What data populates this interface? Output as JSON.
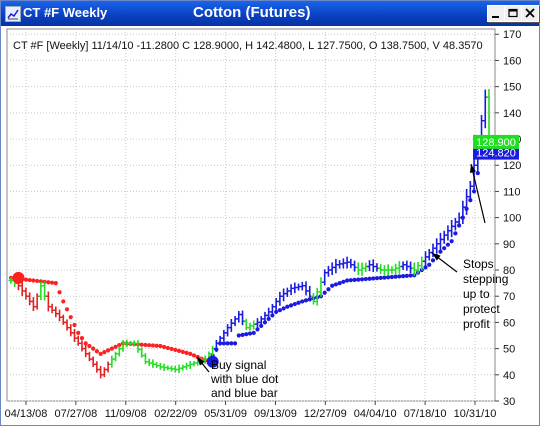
{
  "window": {
    "title": "CT #F Weekly",
    "chart_title": "Cotton (Futures)",
    "controls": [
      "minimize-icon",
      "restore-icon",
      "close-icon"
    ]
  },
  "colors": {
    "titlebar": "#0a3fc0",
    "up_bar": "#22dd22",
    "down_bar": "#e02020",
    "signal_bar": "#1a1ae0",
    "stop_dot_red": "#ff2020",
    "stop_dot_blue": "#1a1ae0",
    "grid": "#c8c8c8",
    "last_price_box": "#1a1ae0",
    "ref_price_box": "#22dd22"
  },
  "chart_data": {
    "type": "ohlc",
    "info_line": "CT #F [Weekly] 11/14/10  -11.2800 C 128.9000, H 142.4800, L 127.7500, O 138.7500, V 48.3570",
    "y_axis": {
      "ticks": [
        30,
        40,
        50,
        60,
        70,
        80,
        90,
        100,
        110,
        120,
        130,
        140,
        150,
        160,
        170
      ],
      "ylim": [
        30,
        172
      ],
      "side": "right"
    },
    "x_axis": {
      "tick_labels": [
        "04/13/08",
        "07/27/08",
        "11/09/08",
        "02/22/09",
        "05/31/09",
        "09/13/09",
        "12/27/09",
        "04/04/10",
        "07/18/10",
        "10/31/10"
      ]
    },
    "grid": true,
    "price_labels": [
      {
        "value": "124.820",
        "color": "#1a1ae0"
      },
      {
        "value": "128.900",
        "color": "#22dd22"
      }
    ],
    "signals": [
      {
        "type": "sell",
        "week": 2,
        "price": 77
      },
      {
        "type": "buy",
        "week": 54,
        "price": 45
      }
    ],
    "annotations": [
      {
        "text": "Buy signal with blue dot and blue bar",
        "lines": [
          "Buy signal",
          "with blue dot",
          "and blue bar"
        ]
      },
      {
        "text": "Stops stepping up to protect profit",
        "lines": [
          "Stops",
          "stepping",
          "up to",
          "protect",
          "profit"
        ]
      }
    ],
    "series_anchors": [
      [
        0,
        76,
        "green"
      ],
      [
        2,
        74,
        "red"
      ],
      [
        4,
        70,
        "red"
      ],
      [
        6,
        66,
        "red"
      ],
      [
        8,
        74,
        "green"
      ],
      [
        10,
        66,
        "red"
      ],
      [
        13,
        62,
        "red"
      ],
      [
        16,
        56,
        "red"
      ],
      [
        19,
        50,
        "red"
      ],
      [
        22,
        44,
        "red"
      ],
      [
        24,
        40,
        "red"
      ],
      [
        27,
        46,
        "green"
      ],
      [
        30,
        52,
        "green"
      ],
      [
        33,
        52,
        "green"
      ],
      [
        36,
        45,
        "green"
      ],
      [
        40,
        43,
        "green"
      ],
      [
        44,
        42,
        "green"
      ],
      [
        48,
        44,
        "green"
      ],
      [
        52,
        46,
        "green"
      ],
      [
        55,
        52,
        "blue"
      ],
      [
        58,
        58,
        "blue"
      ],
      [
        61,
        63,
        "blue"
      ],
      [
        63,
        58,
        "green"
      ],
      [
        66,
        60,
        "blue"
      ],
      [
        69,
        64,
        "blue"
      ],
      [
        72,
        70,
        "blue"
      ],
      [
        75,
        73,
        "blue"
      ],
      [
        78,
        74,
        "blue"
      ],
      [
        81,
        68,
        "green"
      ],
      [
        84,
        79,
        "blue"
      ],
      [
        87,
        82,
        "blue"
      ],
      [
        90,
        83,
        "blue"
      ],
      [
        93,
        80,
        "green"
      ],
      [
        96,
        82,
        "blue"
      ],
      [
        99,
        80,
        "green"
      ],
      [
        102,
        80,
        "green"
      ],
      [
        105,
        82,
        "blue"
      ],
      [
        108,
        80,
        "green"
      ],
      [
        111,
        85,
        "blue"
      ],
      [
        114,
        90,
        "blue"
      ],
      [
        117,
        95,
        "blue"
      ],
      [
        120,
        100,
        "blue"
      ],
      [
        123,
        112,
        "blue"
      ],
      [
        125,
        128,
        "blue"
      ],
      [
        127,
        146,
        "blue"
      ],
      [
        128,
        130,
        "green"
      ]
    ],
    "stop_anchors": [
      [
        0,
        77,
        "red"
      ],
      [
        12,
        75,
        "red"
      ],
      [
        14,
        68,
        "red"
      ],
      [
        16,
        62,
        "red"
      ],
      [
        18,
        56,
        "red"
      ],
      [
        20,
        52,
        "red"
      ],
      [
        24,
        48,
        "red"
      ],
      [
        30,
        52,
        "red"
      ],
      [
        40,
        51,
        "red"
      ],
      [
        48,
        48,
        "red"
      ],
      [
        53,
        45,
        "blue"
      ],
      [
        56,
        52,
        "blue"
      ],
      [
        60,
        52,
        "blue"
      ],
      [
        61,
        55,
        "blue"
      ],
      [
        65,
        56,
        "blue"
      ],
      [
        68,
        60,
        "blue"
      ],
      [
        71,
        64,
        "blue"
      ],
      [
        74,
        66,
        "blue"
      ],
      [
        78,
        68,
        "blue"
      ],
      [
        83,
        70,
        "blue"
      ],
      [
        86,
        74,
        "blue"
      ],
      [
        90,
        76,
        "blue"
      ],
      [
        108,
        78,
        "blue"
      ],
      [
        112,
        82,
        "blue"
      ],
      [
        115,
        87,
        "blue"
      ],
      [
        118,
        91,
        "blue"
      ],
      [
        121,
        100,
        "blue"
      ],
      [
        124,
        110,
        "blue"
      ],
      [
        126,
        124,
        "blue"
      ],
      [
        128,
        124,
        "blue"
      ]
    ]
  }
}
